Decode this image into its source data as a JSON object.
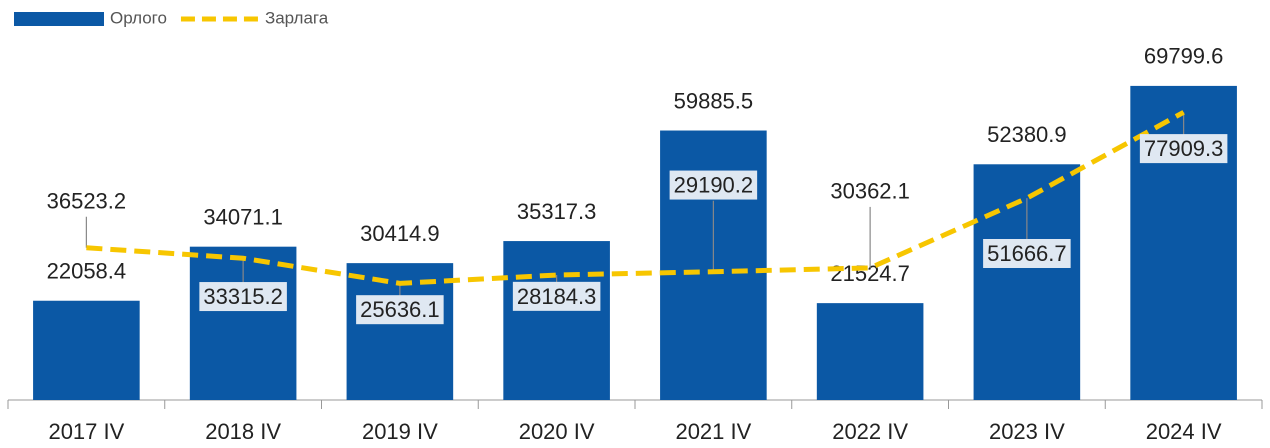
{
  "chart_data": {
    "type": "bar_line",
    "categories": [
      "2017 IV",
      "2018 IV",
      "2019 IV",
      "2020 IV",
      "2021 IV",
      "2022 IV",
      "2023 IV",
      "2024 IV"
    ],
    "series": [
      {
        "name": "Орлого",
        "type": "bar",
        "color": "#0b58a5",
        "values": [
          22058.4,
          34071.1,
          30414.9,
          35317.3,
          59885.5,
          21524.7,
          52380.9,
          69799.6
        ]
      },
      {
        "name": "Зарлага",
        "type": "line",
        "axis": "y2",
        "color": "#f7c600",
        "values": [
          36523.2,
          33315.2,
          25636.1,
          28184.3,
          29190.2,
          30362.1,
          51666.7,
          77909.3
        ]
      }
    ],
    "ylim": [
      0,
      80000
    ],
    "y2lim": [
      -10000,
      100000
    ],
    "legend": "top-left"
  }
}
